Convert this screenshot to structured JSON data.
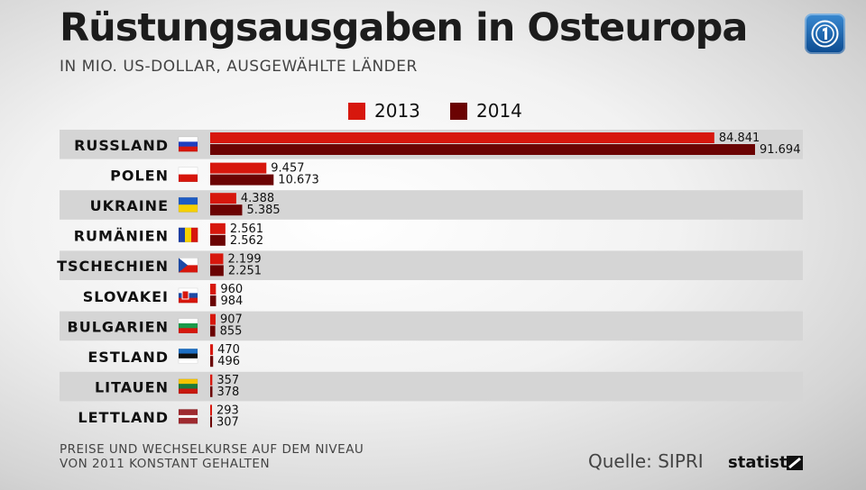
{
  "header": {
    "title": "Rüstungsausgaben in Osteuropa",
    "subtitle": "IN MIO. US-DOLLAR, AUSGEWÄHLTE LÄNDER"
  },
  "logo": {
    "icon": "tagesschau-logo-icon"
  },
  "legend": {
    "items": [
      {
        "label": "2013",
        "color": "#d7170d"
      },
      {
        "label": "2014",
        "color": "#6b0303"
      }
    ]
  },
  "chart_data": {
    "type": "bar",
    "orientation": "horizontal",
    "categories": [
      "RUSSLAND",
      "POLEN",
      "UKRAINE",
      "RUMÄNIEN",
      "TSCHECHIEN",
      "SLOVAKEI",
      "BULGARIEN",
      "ESTLAND",
      "LITAUEN",
      "LETTLAND"
    ],
    "series": [
      {
        "name": "2013",
        "color": "#d7170d",
        "values": [
          84841,
          9457,
          4388,
          2561,
          2199,
          960,
          907,
          470,
          357,
          293
        ],
        "labels": [
          "84.841",
          "9.457",
          "4.388",
          "2.561",
          "2.199",
          "960",
          "907",
          "470",
          "357",
          "293"
        ]
      },
      {
        "name": "2014",
        "color": "#6b0303",
        "values": [
          91694,
          10673,
          5385,
          2562,
          2251,
          984,
          855,
          496,
          378,
          307
        ],
        "labels": [
          "91.694",
          "10.673",
          "5.385",
          "2.562",
          "2.251",
          "984",
          "855",
          "496",
          "378",
          "307"
        ]
      }
    ],
    "grid": false,
    "legend_position": "top"
  },
  "footer": {
    "note": "PREISE UND WECHSELKURSE AUF DEM NIVEAU VON 2011 KONSTANT GEHALTEN",
    "source": "Quelle: SIPRI",
    "brand": "statista"
  }
}
